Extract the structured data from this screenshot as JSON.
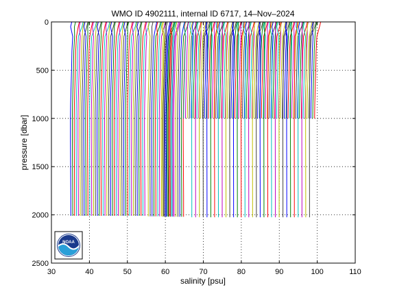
{
  "chart_data": {
    "type": "line",
    "title": "WMO ID 4902111, internal ID 6717, 14–Nov–2024",
    "xlabel": "salinity [psu]",
    "ylabel": "pressure [dbar]",
    "xlim": [
      30,
      110
    ],
    "ylim": [
      2500,
      0
    ],
    "y_inverted": true,
    "x_ticks": [
      30,
      40,
      50,
      60,
      70,
      80,
      90,
      100,
      110
    ],
    "y_ticks": [
      0,
      500,
      1000,
      1500,
      2000,
      2500
    ],
    "grid": "dotted",
    "legend": "none",
    "profile_colors": [
      "#0000ff",
      "#008000",
      "#ff0000",
      "#00bfbf",
      "#bf00bf",
      "#bfbf00",
      "#404040"
    ],
    "profile_offset_step": 0.5,
    "profile_groups": [
      {
        "count": 40,
        "x_start": 35.2,
        "x_step": 0.5,
        "deep_end": 2010,
        "surface_shift": 0.9
      },
      {
        "count": 14,
        "x_start": 55.6,
        "x_step": 0.5,
        "deep_end": 2015,
        "surface_shift": 0.9
      },
      {
        "count": 12,
        "x_start": 59.4,
        "x_step": 0.5,
        "deep_end": 2020,
        "surface_shift": 0.9
      },
      {
        "count": 70,
        "x_start": 65.0,
        "x_step": 0.5,
        "deep_end": 1000,
        "surface_shift": 0.9
      },
      {
        "count": 32,
        "x_start": 67.0,
        "x_step": 1.0,
        "deep_end": 2025,
        "surface_shift": 0.0
      }
    ],
    "profile_shape": {
      "pressure": [
        0,
        50,
        150,
        300,
        500,
        700,
        850,
        1000,
        1200,
        1500,
        1800,
        2000
      ],
      "salinity_anomaly": [
        0.9,
        0.6,
        0.4,
        0.2,
        0.1,
        -0.05,
        -0.15,
        -0.2,
        -0.2,
        -0.15,
        -0.1,
        -0.1
      ]
    }
  },
  "logo": {
    "text": "NOAA",
    "colors": {
      "sky": "#1a3a8c",
      "wave": "#2a9fd8",
      "ring": "#ffffff"
    }
  }
}
